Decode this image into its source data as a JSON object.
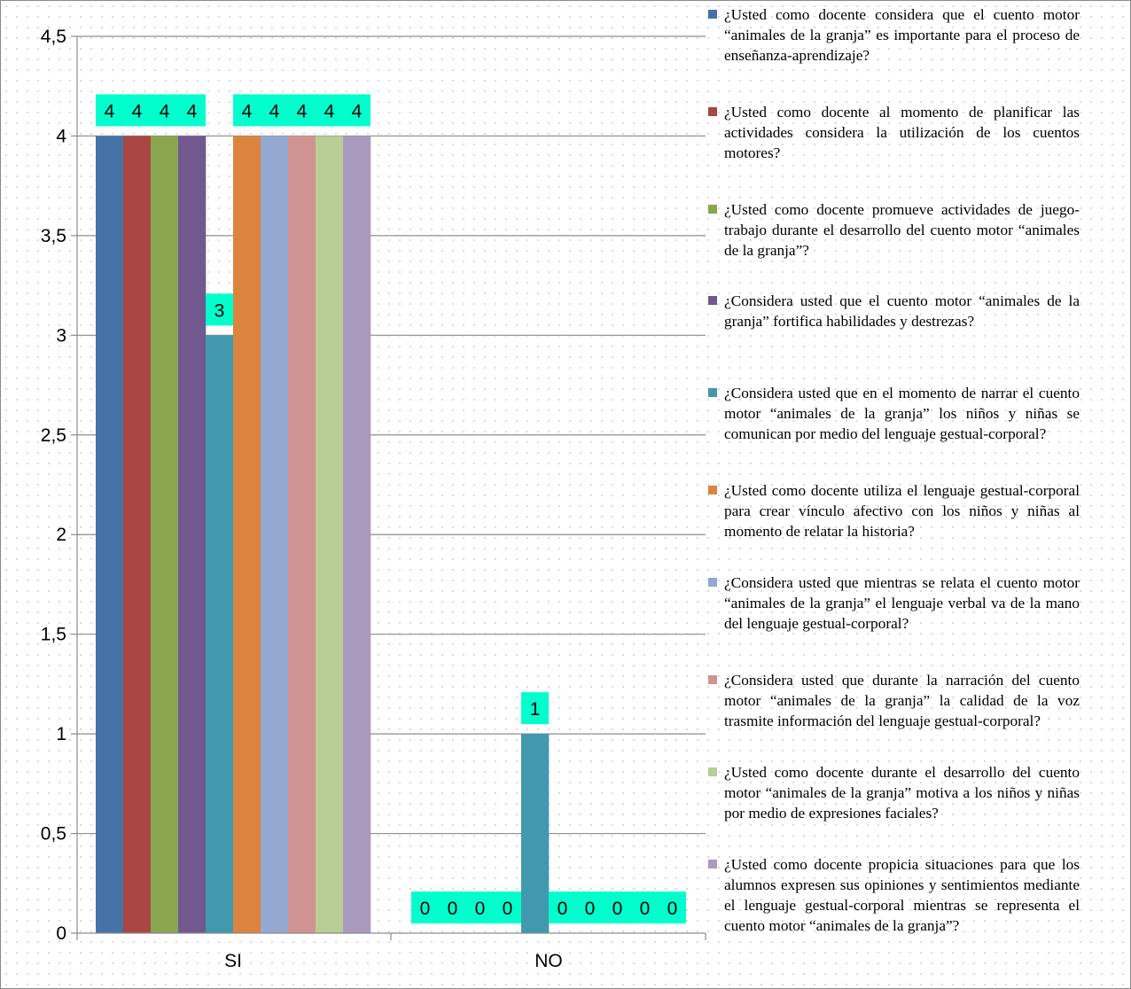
{
  "chart_data": {
    "type": "bar",
    "categories": [
      "SI",
      "NO"
    ],
    "ylim": [
      0,
      4.5
    ],
    "yticks": [
      "0",
      "0,5",
      "1",
      "1,5",
      "2",
      "2,5",
      "3",
      "3,5",
      "4",
      "4,5"
    ],
    "ytick_values": [
      0,
      0.5,
      1,
      1.5,
      2,
      2.5,
      3,
      3.5,
      4,
      4.5
    ],
    "grid": true,
    "legend_position": "right",
    "data_label_bg": "#00ffcc",
    "series": [
      {
        "name": "¿Usted como docente considera que el cuento motor “animales de la granja” es importante para el proceso de enseñanza-aprendizaje?",
        "color": "#4572a7",
        "values": [
          4,
          0
        ]
      },
      {
        "name": "¿Usted como docente al momento de planificar las actividades considera la utilización de los cuentos motores?",
        "color": "#aa4643",
        "values": [
          4,
          0
        ]
      },
      {
        "name": "¿Usted como docente promueve actividades de juego-trabajo durante el desarrollo del cuento motor “animales de la granja”?",
        "color": "#89a54e",
        "values": [
          4,
          0
        ]
      },
      {
        "name": "¿Considera usted que el cuento motor “animales de la granja” fortifica habilidades y destrezas?",
        "color": "#71588f",
        "values": [
          4,
          0
        ]
      },
      {
        "name": "¿Considera usted que en el momento de narrar el cuento motor “animales de la granja” los niños y niñas se comunican por medio del lenguaje gestual-corporal?",
        "color": "#4198af",
        "values": [
          3,
          1
        ]
      },
      {
        "name": "¿Usted como docente utiliza el lenguaje gestual-corporal para crear vínculo afectivo con los niños y niñas al momento de relatar la historia?",
        "color": "#db843d",
        "values": [
          4,
          0
        ]
      },
      {
        "name": "¿Considera usted que mientras se relata el cuento motor “animales de la granja” el lenguaje verbal va de la mano del lenguaje gestual-corporal?",
        "color": "#93a9cf",
        "values": [
          4,
          0
        ]
      },
      {
        "name": "¿Considera usted que durante la narración del cuento motor “animales de la granja” la calidad de la voz trasmite información del lenguaje gestual-corporal?",
        "color": "#d19392",
        "values": [
          4,
          0
        ]
      },
      {
        "name": "¿Usted como docente durante el desarrollo del cuento motor “animales de la granja” motiva a los niños y niñas por medio de expresiones faciales?",
        "color": "#b9cd96",
        "values": [
          4,
          0
        ]
      },
      {
        "name": "¿Usted como docente propicia situaciones para que los alumnos expresen sus opiniones y sentimientos mediante el lenguaje gestual-corporal mientras se representa el cuento motor “animales de la granja”?",
        "color": "#a99bbd",
        "values": [
          4,
          0
        ]
      }
    ]
  }
}
